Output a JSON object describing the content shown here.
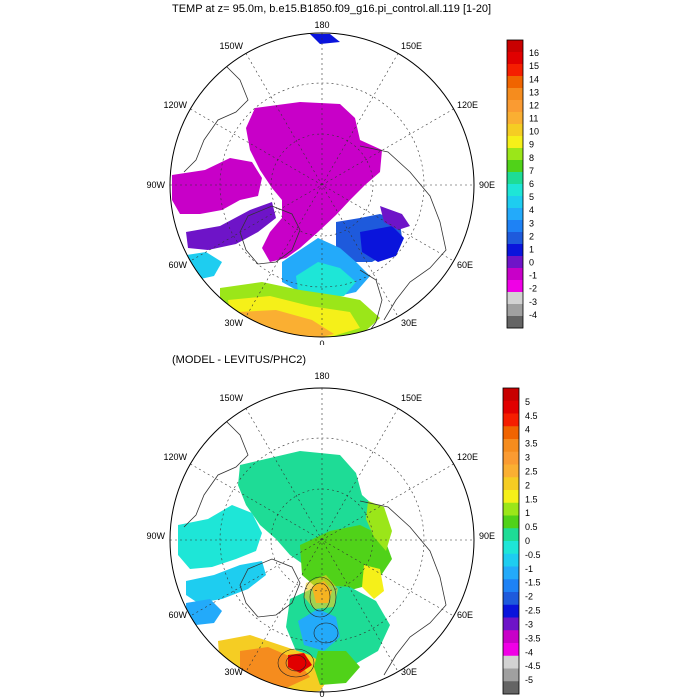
{
  "top": {
    "title": "TEMP at z=  95.0m, b.e15.B1850.f09_g16.pi_control.all.119 [1-20]",
    "lon_labels": {
      "deg180": "180",
      "w150": "150W",
      "e150": "150E",
      "w120": "120W",
      "e120": "120E",
      "w90": "90W",
      "e90": "90E",
      "w60": "60W",
      "e60": "60E",
      "w30": "30W",
      "e30": "30E",
      "deg0": "0"
    },
    "colorbar": {
      "labels": [
        "16",
        "15",
        "14",
        "13",
        "12",
        "11",
        "10",
        "9",
        "8",
        "7",
        "6",
        "5",
        "4",
        "3",
        "2",
        "1",
        "0",
        "-1",
        "-2",
        "-3",
        "-4"
      ],
      "colors": [
        "#c80000",
        "#e10000",
        "#f51e00",
        "#f06400",
        "#f58c1e",
        "#fa9b32",
        "#faaf32",
        "#f5cd23",
        "#f5f019",
        "#9be619",
        "#50d219",
        "#1edc96",
        "#1ee6d7",
        "#1ecdf0",
        "#23aafa",
        "#1e82f5",
        "#1e5adc",
        "#0a14dc",
        "#6e14c8",
        "#c800c8",
        "#f000e6",
        "#d2d2d2",
        "#a0a0a0",
        "#646464"
      ]
    }
  },
  "bottom": {
    "title": "(MODEL - LEVITUS/PHC2)",
    "lon_labels": {
      "deg180": "180",
      "w150": "150W",
      "e150": "150E",
      "w120": "120W",
      "e120": "120E",
      "w90": "90W",
      "e90": "90E",
      "w60": "60W",
      "e60": "60E",
      "w30": "30W",
      "e30": "30E",
      "deg0": "0"
    },
    "colorbar": {
      "labels": [
        "5",
        "4.5",
        "4",
        "3.5",
        "3",
        "2.5",
        "2",
        "1.5",
        "1",
        "0.5",
        "0",
        "-0.5",
        "-1",
        "-1.5",
        "-2",
        "-2.5",
        "-3",
        "-3.5",
        "-4",
        "-4.5",
        "-5"
      ],
      "colors": [
        "#c80000",
        "#e10000",
        "#f51e00",
        "#f06400",
        "#f58c1e",
        "#fa9b32",
        "#faaf32",
        "#f5cd23",
        "#f5f019",
        "#9be619",
        "#50d219",
        "#1edc96",
        "#1ee6d7",
        "#1ecdf0",
        "#23aafa",
        "#1e82f5",
        "#1e5adc",
        "#0a14dc",
        "#6e14c8",
        "#c800c8",
        "#f000e6",
        "#d2d2d2",
        "#a0a0a0",
        "#646464"
      ]
    }
  }
}
